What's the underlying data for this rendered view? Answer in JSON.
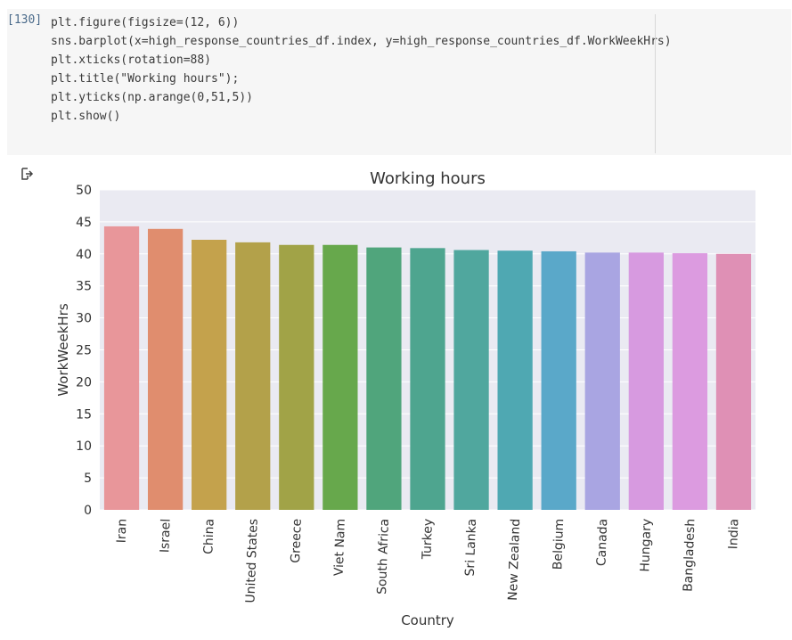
{
  "cell": {
    "prompt": "[130]",
    "lines": [
      "plt.figure(figsize=(12, 6))",
      "sns.barplot(x=high_response_countries_df.index, y=high_response_countries_df.WorkWeekHrs)",
      "plt.xticks(rotation=88)",
      "plt.title(\"Working hours\");",
      "plt.yticks(np.arange(0,51,5))",
      "plt.show()"
    ]
  },
  "output": {
    "icon": "output-redirect-icon"
  },
  "chart_data": {
    "type": "bar",
    "title": "Working hours",
    "xlabel": "Country",
    "ylabel": "WorkWeekHrs",
    "ylim": [
      0,
      50
    ],
    "yticks": [
      0,
      5,
      10,
      15,
      20,
      25,
      30,
      35,
      40,
      45,
      50
    ],
    "grid": true,
    "categories": [
      "Iran",
      "Israel",
      "China",
      "United States",
      "Greece",
      "Viet Nam",
      "South Africa",
      "Turkey",
      "Sri Lanka",
      "New Zealand",
      "Belgium",
      "Canada",
      "Hungary",
      "Bangladesh",
      "India"
    ],
    "values": [
      44.3,
      43.9,
      42.2,
      41.8,
      41.4,
      41.4,
      41.0,
      40.9,
      40.6,
      40.5,
      40.4,
      40.2,
      40.2,
      40.1,
      40.0
    ],
    "colors": [
      "#e8969a",
      "#e08d6e",
      "#c4a24c",
      "#b3a14a",
      "#a1a347",
      "#67a84c",
      "#50a57c",
      "#4ea58f",
      "#50a79e",
      "#4fa8b2",
      "#5aa8c9",
      "#a9a5e2",
      "#d79ae0",
      "#dc9be0",
      "#df90b5"
    ]
  }
}
